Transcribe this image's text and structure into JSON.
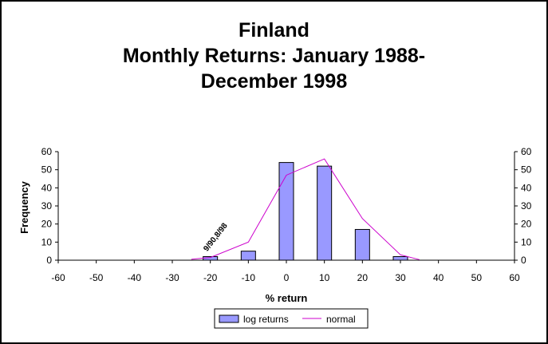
{
  "chart_data": {
    "type": "bar",
    "title": [
      "Finland",
      "Monthly Returns: January 1988-",
      "December 1998"
    ],
    "xlabel": "% return",
    "ylabel": "Frequency",
    "x_ticks": [
      -60,
      -50,
      -40,
      -30,
      -20,
      -10,
      0,
      10,
      20,
      30,
      40,
      50,
      60
    ],
    "xlim": [
      -60,
      60
    ],
    "ylim": [
      0,
      60
    ],
    "y_ticks": [
      0,
      10,
      20,
      30,
      40,
      50,
      60
    ],
    "secondary_y_ticks": [
      0,
      10,
      20,
      30,
      40,
      50,
      60
    ],
    "grid": false,
    "legend_position": "bottom",
    "series": [
      {
        "name": "log returns",
        "type": "bar",
        "color": "#9999ff",
        "x": [
          -20,
          -10,
          0,
          10,
          20,
          30
        ],
        "values": [
          2,
          5,
          54,
          52,
          17,
          2
        ]
      },
      {
        "name": "normal",
        "type": "line",
        "color": "#cc00cc",
        "x": [
          -25,
          -20,
          -10,
          0,
          10,
          20,
          30,
          35
        ],
        "values": [
          0.5,
          1.5,
          10,
          47,
          56,
          23,
          3,
          0.3
        ]
      }
    ],
    "annotations": [
      {
        "text": "9/90,8/98",
        "x": -20,
        "y": 2
      }
    ]
  }
}
